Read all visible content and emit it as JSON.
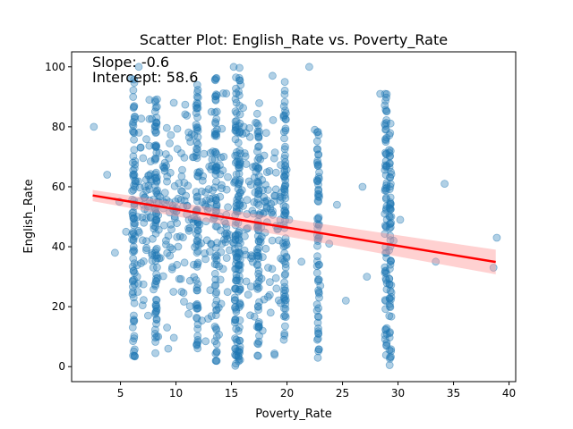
{
  "chart_data": {
    "type": "scatter",
    "title": "Scatter Plot: English_Rate vs. Poverty_Rate",
    "xlabel": "Poverty_Rate",
    "ylabel": "English_Rate",
    "xlim": [
      0.6,
      40.6
    ],
    "ylim": [
      -5,
      105
    ],
    "xticks": [
      5,
      10,
      15,
      20,
      25,
      30,
      35,
      40
    ],
    "yticks": [
      0,
      20,
      40,
      60,
      80,
      100
    ],
    "grid": false,
    "point_color": "#1f77b4",
    "fit_color": "#ff0000",
    "band_color": "#ff9999",
    "annotations": {
      "slope": "Slope: -0.6",
      "intercept": "Intercept: 58.6"
    },
    "regression": {
      "x": [
        2.5,
        38.8
      ],
      "y": [
        57.1,
        34.9
      ],
      "band_low": [
        55.2,
        30.8
      ],
      "band_high": [
        58.9,
        39.0
      ]
    },
    "points": {
      "x": [
        2.6,
        3.8,
        4.5,
        4.9,
        5.5,
        6.0,
        6.3,
        6.5,
        6.2,
        7.2,
        7.6,
        8.0,
        8.2,
        8.4,
        9.0,
        9.1,
        9.3,
        9.8,
        10.2,
        10.5,
        10.9,
        11.3,
        11.6,
        11.9,
        12.0,
        12.4,
        12.9,
        13.2,
        13.6,
        14.0,
        14.3,
        14.8,
        15.2,
        15.4,
        15.6,
        15.8,
        16.1,
        16.5,
        17.0,
        17.4,
        17.8,
        18.3,
        18.7,
        19.2,
        19.8,
        20.2,
        21.3,
        22.0,
        22.5,
        23.0,
        23.8,
        24.5,
        25.3,
        26.8,
        27.2,
        28.4,
        28.9,
        29.6,
        30.2,
        33.4,
        34.2,
        38.6,
        38.9
      ],
      "y": [
        80,
        64,
        38,
        55,
        45,
        96,
        62,
        30,
        15,
        60,
        89,
        47,
        20,
        10,
        68,
        42,
        6,
        88,
        40,
        25,
        57,
        75,
        34,
        90,
        48,
        62,
        16,
        85,
        53,
        29,
        70,
        44,
        100,
        1,
        38,
        58,
        80,
        24,
        51,
        66,
        12,
        33,
        97,
        46,
        59,
        49,
        35,
        100,
        79,
        27,
        41,
        54,
        22,
        60,
        30,
        91,
        75,
        42,
        49,
        35,
        61,
        33,
        43
      ]
    },
    "point_columns": [
      {
        "x": 6.2,
        "ymin": 2,
        "ymax": 96
      },
      {
        "x": 8.2,
        "ymin": 4,
        "ymax": 90
      },
      {
        "x": 11.9,
        "ymin": 5,
        "ymax": 96
      },
      {
        "x": 13.6,
        "ymin": 1,
        "ymax": 97
      },
      {
        "x": 15.4,
        "ymin": 0,
        "ymax": 100
      },
      {
        "x": 15.7,
        "ymin": 0,
        "ymax": 100
      },
      {
        "x": 17.4,
        "ymin": 2,
        "ymax": 88
      },
      {
        "x": 19.8,
        "ymin": 3,
        "ymax": 96
      },
      {
        "x": 22.8,
        "ymin": 0,
        "ymax": 79
      },
      {
        "x": 28.9,
        "ymin": 1,
        "ymax": 91
      },
      {
        "x": 29.3,
        "ymin": 0,
        "ymax": 86
      }
    ]
  }
}
